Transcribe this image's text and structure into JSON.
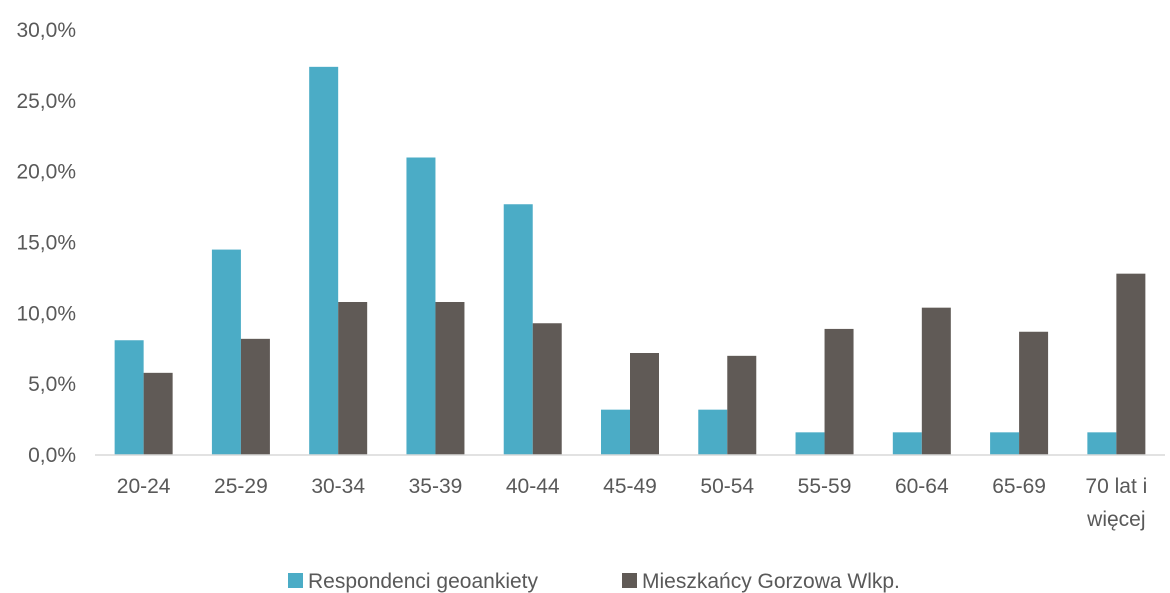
{
  "chart_data": {
    "type": "bar",
    "categories": [
      [
        "20-24"
      ],
      [
        "25-29"
      ],
      [
        "30-34"
      ],
      [
        "35-39"
      ],
      [
        "40-44"
      ],
      [
        "45-49"
      ],
      [
        "50-54"
      ],
      [
        "55-59"
      ],
      [
        "60-64"
      ],
      [
        "65-69"
      ],
      [
        "70 lat i",
        "więcej"
      ]
    ],
    "series": [
      {
        "name": "Respondenci geoankiety",
        "color": "#4BACC6",
        "values": [
          8.1,
          14.5,
          27.4,
          21.0,
          17.7,
          3.2,
          3.2,
          1.6,
          1.6,
          1.6,
          1.6
        ]
      },
      {
        "name": "Mieszkańcy Gorzowa Wlkp.",
        "color": "#605A56",
        "values": [
          5.8,
          8.2,
          10.8,
          10.8,
          9.3,
          7.2,
          7.0,
          8.9,
          10.4,
          8.7,
          12.8
        ]
      }
    ],
    "ylim": [
      0,
      30
    ],
    "yticks": [
      "0,0%",
      "5,0%",
      "10,0%",
      "15,0%",
      "20,0%",
      "25,0%",
      "30,0%"
    ],
    "grid": false,
    "legend_position": "bottom"
  }
}
